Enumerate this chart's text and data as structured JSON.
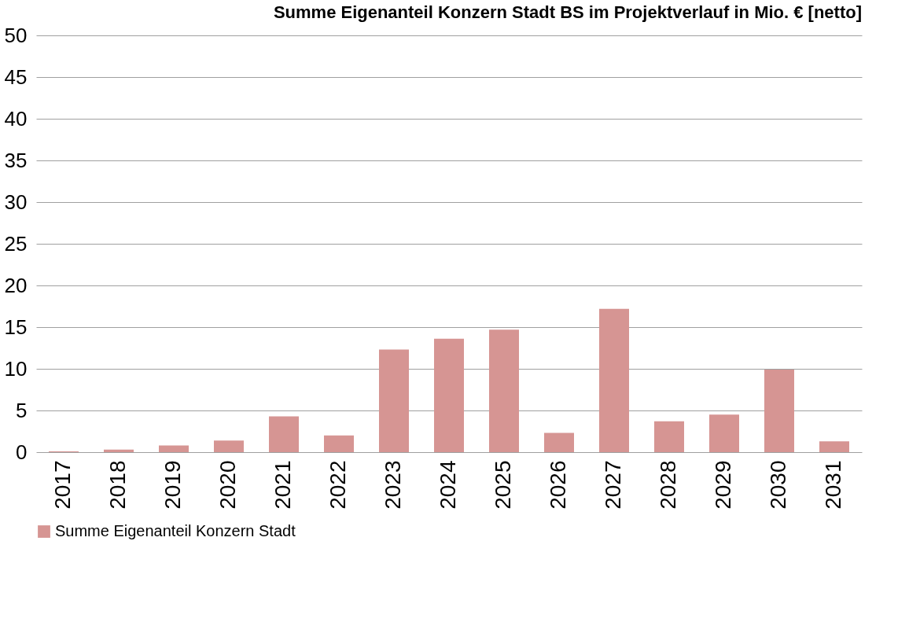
{
  "chart_data": {
    "type": "bar",
    "title": "Summe Eigenanteil Konzern Stadt BS im Projektverlauf in Mio. € [netto]",
    "categories": [
      "2017",
      "2018",
      "2019",
      "2020",
      "2021",
      "2022",
      "2023",
      "2024",
      "2025",
      "2026",
      "2027",
      "2028",
      "2029",
      "2030",
      "2031"
    ],
    "series": [
      {
        "name": "Summe Eigenanteil Konzern Stadt",
        "color": "#d69593",
        "values": [
          0.1,
          0.3,
          0.8,
          1.4,
          4.3,
          2.0,
          12.3,
          13.6,
          14.7,
          2.3,
          17.2,
          3.7,
          4.5,
          9.9,
          1.3
        ]
      }
    ],
    "ylim": [
      0,
      50
    ],
    "yticks": [
      0,
      5,
      10,
      15,
      20,
      25,
      30,
      35,
      40,
      45,
      50
    ],
    "grid": "y",
    "legend": "bottom"
  }
}
